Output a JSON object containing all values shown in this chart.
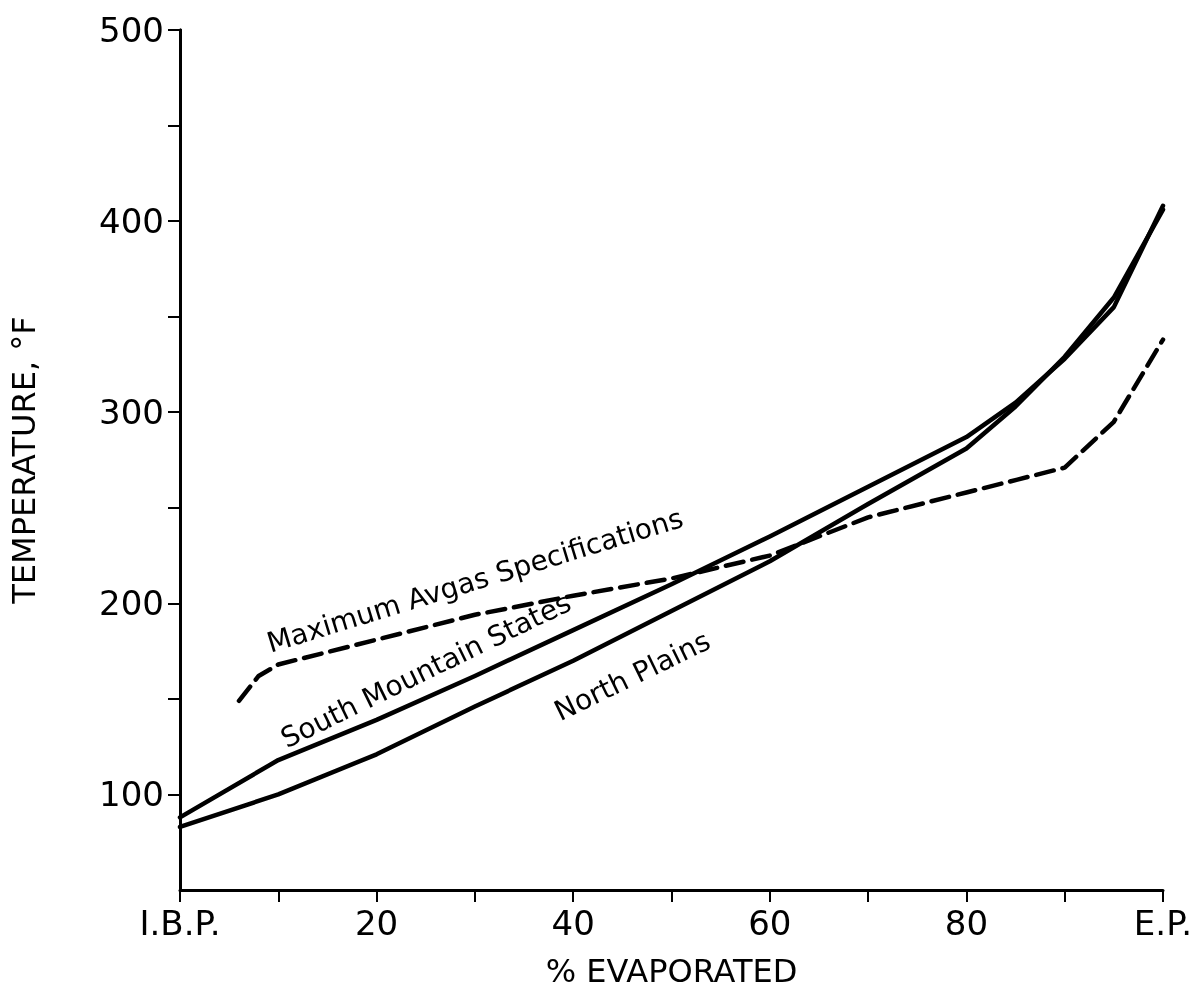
{
  "chart_data": {
    "type": "line",
    "xlabel": "% EVAPORATED",
    "ylabel": "TEMPERATURE, °F",
    "x": [
      0,
      10,
      20,
      30,
      40,
      50,
      60,
      70,
      80,
      85,
      90,
      95,
      100
    ],
    "xlim": [
      0,
      100
    ],
    "xticks": [
      {
        "value": 0,
        "label": "I.B.P."
      },
      {
        "value": 10,
        "label": null
      },
      20,
      {
        "value": 30,
        "label": null
      },
      40,
      {
        "value": 50,
        "label": null
      },
      60,
      {
        "value": 70,
        "label": null
      },
      80,
      {
        "value": 90,
        "label": null
      },
      {
        "value": 100,
        "label": "E.P."
      }
    ],
    "ylim": [
      50,
      500
    ],
    "yticks": [
      100,
      {
        "value": 150,
        "label": null
      },
      200,
      {
        "value": 250,
        "label": null
      },
      300,
      {
        "value": 350,
        "label": null
      },
      400,
      {
        "value": 450,
        "label": null
      },
      500
    ],
    "series": [
      {
        "name": "Maximum Avgas Specifications",
        "color": "#000000",
        "line_style": "dashed",
        "x": [
          6,
          8,
          10,
          20,
          30,
          40,
          50,
          60,
          70,
          80,
          90,
          95,
          100
        ],
        "values": [
          149,
          162,
          168,
          181,
          194,
          204,
          213,
          225,
          245,
          258,
          271,
          295,
          338
        ]
      },
      {
        "name": "South Mountain States",
        "color": "#000000",
        "line_style": "solid",
        "values": [
          88,
          118,
          139,
          162,
          186,
          210,
          235,
          261,
          287,
          305,
          328,
          355,
          408
        ]
      },
      {
        "name": "North Plains",
        "color": "#000000",
        "line_style": "solid",
        "values": [
          83,
          100,
          121,
          146,
          170,
          196,
          222,
          252,
          281,
          303,
          329,
          360,
          406
        ]
      }
    ],
    "marker": "none",
    "legend": false,
    "grid": false
  }
}
